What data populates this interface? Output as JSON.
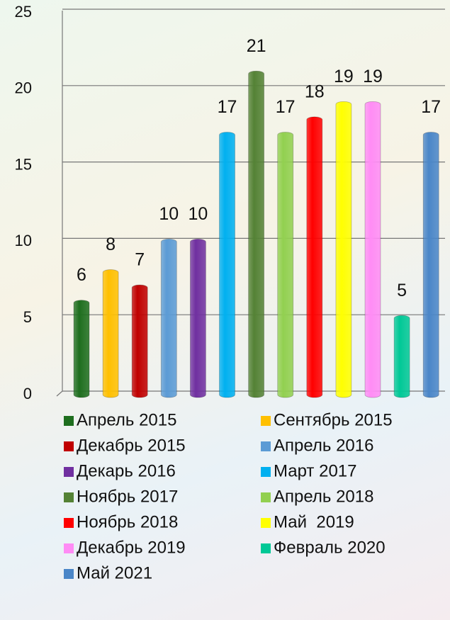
{
  "chart_data": {
    "type": "bar",
    "categories": [
      "Апрель 2015",
      "Сентябрь 2015",
      "Декабрь 2015",
      "Апрель 2016",
      "Декарь 2016",
      "Март 2017",
      "Ноябрь 2017",
      "Апрель 2018",
      "Ноябрь 2018",
      "Май  2019",
      "Декабрь 2019",
      "Февраль 2020",
      "Май 2021"
    ],
    "values": [
      6,
      8,
      7,
      10,
      10,
      17,
      21,
      17,
      18,
      19,
      19,
      5,
      17
    ],
    "colors": [
      "#1e6e1e",
      "#ffc000",
      "#c00000",
      "#5b9bd5",
      "#7030a0",
      "#00b0f0",
      "#548235",
      "#92d050",
      "#ff0000",
      "#ffff00",
      "#ff8cf5",
      "#00c896",
      "#4a86c8"
    ],
    "ylim": [
      0,
      25
    ],
    "yticks": [
      0,
      5,
      10,
      15,
      20,
      25
    ],
    "grid": true,
    "legend": "bottom"
  }
}
